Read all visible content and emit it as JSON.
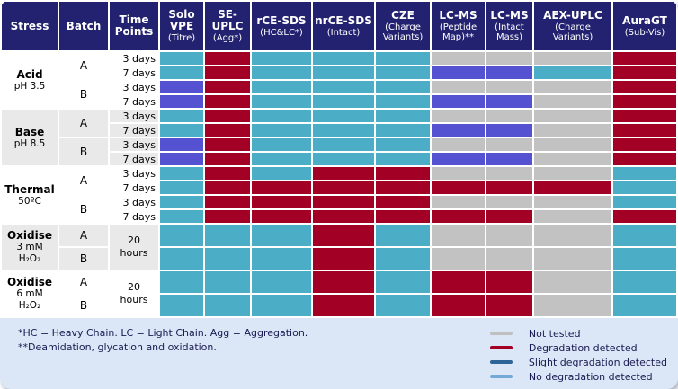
{
  "colors": {
    "header_bg": "#232270",
    "card_bg": "#DBE7F6",
    "label_shade": "#E9E9E9",
    "cell": {
      "none": "#4BADC6",
      "slight": "#5552D1",
      "deg": "#A30026",
      "nt": "#C2C2C2"
    },
    "legend_swatch": {
      "nt": "#C0C0C0",
      "deg": "#A30026",
      "slight": "#2E6496",
      "none": "#72A9D6"
    }
  },
  "table": {
    "columns": [
      {
        "lines": [
          "Stress"
        ],
        "sub": ""
      },
      {
        "lines": [
          "Batch"
        ],
        "sub": ""
      },
      {
        "lines": [
          "Time",
          "Points"
        ],
        "sub": ""
      },
      {
        "lines": [
          "Solo",
          "VPE"
        ],
        "sub": "(Titre)"
      },
      {
        "lines": [
          "SE-",
          "UPLC"
        ],
        "sub": "(Agg*)"
      },
      {
        "lines": [
          "rCE-SDS"
        ],
        "sub": "(HC&LC*)"
      },
      {
        "lines": [
          "nrCE-SDS"
        ],
        "sub": "(Intact)"
      },
      {
        "lines": [
          "CZE"
        ],
        "sub": "(Charge Variants)"
      },
      {
        "lines": [
          "LC-MS"
        ],
        "sub": "(Peptide Map)**"
      },
      {
        "lines": [
          "LC-MS"
        ],
        "sub": "(Intact Mass)"
      },
      {
        "lines": [
          "AEX-UPLC"
        ],
        "sub": "(Charge Variants)"
      },
      {
        "lines": [
          "AuraGT"
        ],
        "sub": "(Sub-Vis)"
      }
    ],
    "groups": [
      {
        "stress_main": "Acid",
        "stress_sub": [
          "pH 3.5"
        ],
        "shade": "white",
        "batches": [
          {
            "label": "A",
            "rows": [
              {
                "time": "3 days",
                "cells": [
                  "none",
                  "deg",
                  "none",
                  "none",
                  "none",
                  "nt",
                  "nt",
                  "nt",
                  "deg"
                ]
              },
              {
                "time": "7 days",
                "cells": [
                  "none",
                  "deg",
                  "none",
                  "none",
                  "none",
                  "slight",
                  "slight",
                  "none",
                  "deg"
                ]
              }
            ]
          },
          {
            "label": "B",
            "rows": [
              {
                "time": "3 days",
                "cells": [
                  "slight",
                  "deg",
                  "none",
                  "none",
                  "none",
                  "nt",
                  "nt",
                  "nt",
                  "deg"
                ]
              },
              {
                "time": "7 days",
                "cells": [
                  "slight",
                  "deg",
                  "none",
                  "none",
                  "none",
                  "slight",
                  "slight",
                  "nt",
                  "deg"
                ]
              }
            ]
          }
        ]
      },
      {
        "stress_main": "Base",
        "stress_sub": [
          "pH 8.5"
        ],
        "shade": "gray",
        "batches": [
          {
            "label": "A",
            "rows": [
              {
                "time": "3 days",
                "cells": [
                  "none",
                  "deg",
                  "none",
                  "none",
                  "none",
                  "nt",
                  "nt",
                  "nt",
                  "deg"
                ]
              },
              {
                "time": "7 days",
                "cells": [
                  "none",
                  "deg",
                  "none",
                  "none",
                  "none",
                  "slight",
                  "slight",
                  "nt",
                  "deg"
                ]
              }
            ]
          },
          {
            "label": "B",
            "rows": [
              {
                "time": "3 days",
                "cells": [
                  "slight",
                  "deg",
                  "none",
                  "none",
                  "none",
                  "nt",
                  "nt",
                  "nt",
                  "deg"
                ]
              },
              {
                "time": "7 days",
                "cells": [
                  "slight",
                  "deg",
                  "none",
                  "none",
                  "none",
                  "slight",
                  "slight",
                  "nt",
                  "deg"
                ]
              }
            ]
          }
        ]
      },
      {
        "stress_main": "Thermal",
        "stress_sub": [
          "50ºC"
        ],
        "shade": "white",
        "batches": [
          {
            "label": "A",
            "rows": [
              {
                "time": "3 days",
                "cells": [
                  "none",
                  "deg",
                  "none",
                  "deg",
                  "deg",
                  "nt",
                  "nt",
                  "nt",
                  "none"
                ]
              },
              {
                "time": "7 days",
                "cells": [
                  "none",
                  "deg",
                  "deg",
                  "deg",
                  "deg",
                  "deg",
                  "deg",
                  "deg",
                  "none"
                ]
              }
            ]
          },
          {
            "label": "B",
            "rows": [
              {
                "time": "3 days",
                "cells": [
                  "none",
                  "deg",
                  "deg",
                  "deg",
                  "deg",
                  "nt",
                  "nt",
                  "nt",
                  "none"
                ]
              },
              {
                "time": "7 days",
                "cells": [
                  "none",
                  "deg",
                  "deg",
                  "deg",
                  "deg",
                  "deg",
                  "deg",
                  "nt",
                  "deg"
                ]
              }
            ]
          }
        ]
      },
      {
        "stress_main": "Oxidise",
        "stress_sub": [
          "3 mM",
          "H₂O₂"
        ],
        "shade": "gray",
        "merged_time": "20\nhours",
        "batches": [
          {
            "label": "A",
            "rows": [
              {
                "cells": [
                  "none",
                  "none",
                  "none",
                  "deg",
                  "none",
                  "nt",
                  "nt",
                  "nt",
                  "none"
                ]
              }
            ]
          },
          {
            "label": "B",
            "rows": [
              {
                "cells": [
                  "none",
                  "none",
                  "none",
                  "deg",
                  "none",
                  "nt",
                  "nt",
                  "nt",
                  "none"
                ]
              }
            ]
          }
        ]
      },
      {
        "stress_main": "Oxidise",
        "stress_sub": [
          "6 mM",
          "H₂O₂"
        ],
        "shade": "white",
        "merged_time": "20\nhours",
        "batches": [
          {
            "label": "A",
            "rows": [
              {
                "cells": [
                  "none",
                  "none",
                  "none",
                  "deg",
                  "none",
                  "deg",
                  "deg",
                  "nt",
                  "none"
                ]
              }
            ]
          },
          {
            "label": "B",
            "rows": [
              {
                "cells": [
                  "none",
                  "none",
                  "none",
                  "deg",
                  "none",
                  "deg",
                  "deg",
                  "nt",
                  "none"
                ]
              }
            ]
          }
        ]
      }
    ]
  },
  "footnotes": [
    "*HC = Heavy Chain. LC = Light Chain. Agg = Aggregation.",
    "**Deamidation, glycation and oxidation."
  ],
  "legend": {
    "items": [
      {
        "key": "nt",
        "label": "Not tested"
      },
      {
        "key": "deg",
        "label": "Degradation detected"
      },
      {
        "key": "slight",
        "label": "Slight degradation detected"
      },
      {
        "key": "none",
        "label": "No degradation detected"
      }
    ]
  },
  "chart_data": {
    "type": "heatmap",
    "columns": [
      "Solo VPE (Titre)",
      "SE-UPLC (Agg*)",
      "rCE-SDS (HC&LC*)",
      "nrCE-SDS (Intact)",
      "CZE (Charge Variants)",
      "LC-MS (Peptide Map)**",
      "LC-MS (Intact Mass)",
      "AEX-UPLC (Charge Variants)",
      "AuraGT (Sub-Vis)"
    ],
    "value_legend": {
      "none": "No degradation detected",
      "slight": "Slight degradation detected",
      "deg": "Degradation detected",
      "nt": "Not tested"
    },
    "rows": [
      {
        "stress": "Acid pH 3.5",
        "batch": "A",
        "time": "3 days",
        "values": [
          "none",
          "deg",
          "none",
          "none",
          "none",
          "nt",
          "nt",
          "nt",
          "deg"
        ]
      },
      {
        "stress": "Acid pH 3.5",
        "batch": "A",
        "time": "7 days",
        "values": [
          "none",
          "deg",
          "none",
          "none",
          "none",
          "slight",
          "slight",
          "none",
          "deg"
        ]
      },
      {
        "stress": "Acid pH 3.5",
        "batch": "B",
        "time": "3 days",
        "values": [
          "slight",
          "deg",
          "none",
          "none",
          "none",
          "nt",
          "nt",
          "nt",
          "deg"
        ]
      },
      {
        "stress": "Acid pH 3.5",
        "batch": "B",
        "time": "7 days",
        "values": [
          "slight",
          "deg",
          "none",
          "none",
          "none",
          "slight",
          "slight",
          "nt",
          "deg"
        ]
      },
      {
        "stress": "Base pH 8.5",
        "batch": "A",
        "time": "3 days",
        "values": [
          "none",
          "deg",
          "none",
          "none",
          "none",
          "nt",
          "nt",
          "nt",
          "deg"
        ]
      },
      {
        "stress": "Base pH 8.5",
        "batch": "A",
        "time": "7 days",
        "values": [
          "none",
          "deg",
          "none",
          "none",
          "none",
          "slight",
          "slight",
          "nt",
          "deg"
        ]
      },
      {
        "stress": "Base pH 8.5",
        "batch": "B",
        "time": "3 days",
        "values": [
          "slight",
          "deg",
          "none",
          "none",
          "none",
          "nt",
          "nt",
          "nt",
          "deg"
        ]
      },
      {
        "stress": "Base pH 8.5",
        "batch": "B",
        "time": "7 days",
        "values": [
          "slight",
          "deg",
          "none",
          "none",
          "none",
          "slight",
          "slight",
          "nt",
          "deg"
        ]
      },
      {
        "stress": "Thermal 50ºC",
        "batch": "A",
        "time": "3 days",
        "values": [
          "none",
          "deg",
          "none",
          "deg",
          "deg",
          "nt",
          "nt",
          "nt",
          "none"
        ]
      },
      {
        "stress": "Thermal 50ºC",
        "batch": "A",
        "time": "7 days",
        "values": [
          "none",
          "deg",
          "deg",
          "deg",
          "deg",
          "deg",
          "deg",
          "deg",
          "none"
        ]
      },
      {
        "stress": "Thermal 50ºC",
        "batch": "B",
        "time": "3 days",
        "values": [
          "none",
          "deg",
          "deg",
          "deg",
          "deg",
          "nt",
          "nt",
          "nt",
          "none"
        ]
      },
      {
        "stress": "Thermal 50ºC",
        "batch": "B",
        "time": "7 days",
        "values": [
          "none",
          "deg",
          "deg",
          "deg",
          "deg",
          "deg",
          "deg",
          "nt",
          "deg"
        ]
      },
      {
        "stress": "Oxidise 3 mM H₂O₂",
        "batch": "A",
        "time": "20 hours",
        "values": [
          "none",
          "none",
          "none",
          "deg",
          "none",
          "nt",
          "nt",
          "nt",
          "none"
        ]
      },
      {
        "stress": "Oxidise 3 mM H₂O₂",
        "batch": "B",
        "time": "20 hours",
        "values": [
          "none",
          "none",
          "none",
          "deg",
          "none",
          "nt",
          "nt",
          "nt",
          "none"
        ]
      },
      {
        "stress": "Oxidise 6 mM H₂O₂",
        "batch": "A",
        "time": "20 hours",
        "values": [
          "none",
          "none",
          "none",
          "deg",
          "none",
          "deg",
          "deg",
          "nt",
          "none"
        ]
      },
      {
        "stress": "Oxidise 6 mM H₂O₂",
        "batch": "B",
        "time": "20 hours",
        "values": [
          "none",
          "none",
          "none",
          "deg",
          "none",
          "deg",
          "deg",
          "nt",
          "none"
        ]
      }
    ]
  }
}
